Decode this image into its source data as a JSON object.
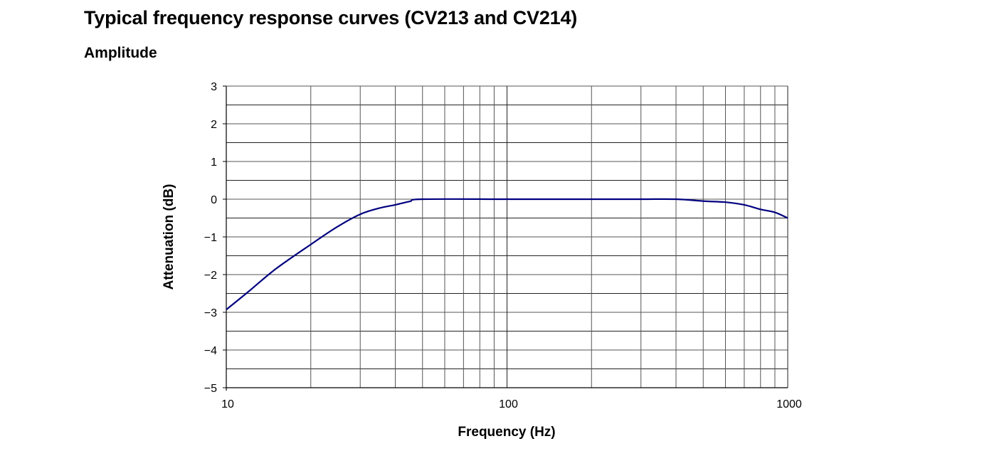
{
  "page": {
    "title": "Typical frequency response curves (CV213 and CV214)",
    "subtitle": "Amplitude"
  },
  "chart_data": {
    "type": "line",
    "title": "Typical frequency response curves (CV213 and CV214)",
    "subtitle": "Amplitude",
    "xlabel": "Frequency (Hz)",
    "ylabel": "Attenuation (dB)",
    "xscale": "log",
    "xlim": [
      10,
      1000
    ],
    "ylim": [
      -5,
      3
    ],
    "x_ticks": [
      "10",
      "100",
      "1000"
    ],
    "y_ticks": [
      "3",
      "2",
      "1",
      "0",
      "−1",
      "−2",
      "−3",
      "−4",
      "−5"
    ],
    "grid": true,
    "legend": null,
    "series": [
      {
        "name": "CV213/CV214 amplitude response",
        "color": "#00007f",
        "x": [
          10,
          12,
          15,
          20,
          25,
          30,
          35,
          40,
          45,
          50,
          100,
          200,
          300,
          400,
          500,
          600,
          700,
          800,
          900,
          1000
        ],
        "y": [
          -2.93,
          -2.45,
          -1.85,
          -1.2,
          -0.72,
          -0.4,
          -0.24,
          -0.15,
          -0.06,
          0,
          0,
          0,
          0,
          0,
          -0.05,
          -0.08,
          -0.15,
          -0.27,
          -0.35,
          -0.5
        ]
      }
    ]
  }
}
